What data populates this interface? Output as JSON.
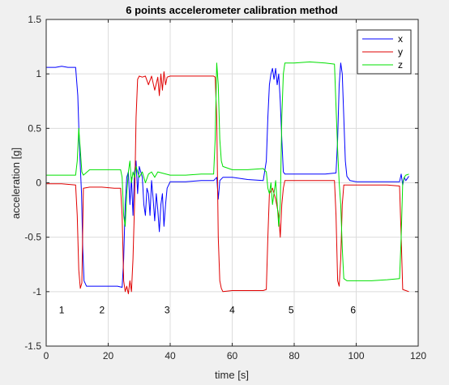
{
  "chart_data": {
    "type": "line",
    "title": "6 points accelerometer calibration method",
    "xlabel": "time [s]",
    "ylabel": "acceleration [g]",
    "xlim": [
      0,
      120
    ],
    "ylim": [
      -1.5,
      1.5
    ],
    "xticks": [
      0,
      20,
      40,
      60,
      80,
      100,
      120
    ],
    "yticks": [
      -1.5,
      -1,
      -0.5,
      0,
      0.5,
      1,
      1.5
    ],
    "xtick_labels": [
      "0",
      "20",
      "40",
      "60",
      "80",
      "100",
      "120"
    ],
    "ytick_labels": [
      "-1.5",
      "-1",
      "-0.5",
      "0",
      "0.5",
      "1",
      "1.5"
    ],
    "grid": true,
    "legend_position": "top-right",
    "annotations": [
      {
        "text": "1",
        "x": 5,
        "y": -1.17
      },
      {
        "text": "2",
        "x": 18,
        "y": -1.17
      },
      {
        "text": "3",
        "x": 39,
        "y": -1.17
      },
      {
        "text": "4",
        "x": 60,
        "y": -1.17
      },
      {
        "text": "5",
        "x": 79,
        "y": -1.17
      },
      {
        "text": "6",
        "x": 99,
        "y": -1.17
      }
    ],
    "series": [
      {
        "name": "x",
        "color": "#0000ff",
        "points": [
          [
            0,
            1.06
          ],
          [
            3,
            1.06
          ],
          [
            5,
            1.07
          ],
          [
            7,
            1.06
          ],
          [
            9.5,
            1.06
          ],
          [
            10.2,
            0.8
          ],
          [
            10.6,
            0.45
          ],
          [
            11,
            0.15
          ],
          [
            11.4,
            -0.1
          ],
          [
            11.8,
            -0.6
          ],
          [
            12.2,
            -0.9
          ],
          [
            13,
            -0.95
          ],
          [
            16,
            -0.95
          ],
          [
            20,
            -0.95
          ],
          [
            23,
            -0.95
          ],
          [
            24.5,
            -0.96
          ],
          [
            25,
            -0.7
          ],
          [
            25.5,
            -0.2
          ],
          [
            26,
            0.05
          ],
          [
            26.5,
            0.1
          ],
          [
            27,
            -0.2
          ],
          [
            27.5,
            0.05
          ],
          [
            28,
            -0.3
          ],
          [
            28.5,
            0.1
          ],
          [
            29,
            0.2
          ],
          [
            29.5,
            -0.1
          ],
          [
            30,
            0.15
          ],
          [
            30.5,
            0.1
          ],
          [
            31,
            0.05
          ],
          [
            31.5,
            -0.2
          ],
          [
            32,
            -0.3
          ],
          [
            32.5,
            -0.05
          ],
          [
            33,
            -0.1
          ],
          [
            33.5,
            -0.3
          ],
          [
            34,
            0.02
          ],
          [
            34.5,
            -0.15
          ],
          [
            35,
            -0.35
          ],
          [
            35.5,
            -0.1
          ],
          [
            36,
            -0.25
          ],
          [
            36.5,
            -0.45
          ],
          [
            37,
            -0.2
          ],
          [
            37.5,
            -0.1
          ],
          [
            38,
            -0.4
          ],
          [
            38.5,
            -0.2
          ],
          [
            39,
            -0.05
          ],
          [
            40,
            0.01
          ],
          [
            45,
            0.01
          ],
          [
            50,
            0.02
          ],
          [
            54,
            0.02
          ],
          [
            55,
            0.05
          ],
          [
            55.5,
            -0.15
          ],
          [
            56,
            0.02
          ],
          [
            57,
            0.05
          ],
          [
            60,
            0.05
          ],
          [
            65,
            0.03
          ],
          [
            70,
            0.02
          ],
          [
            71,
            0.2
          ],
          [
            71.5,
            0.6
          ],
          [
            72,
            0.9
          ],
          [
            72.5,
            1.0
          ],
          [
            73,
            1.05
          ],
          [
            73.5,
            0.95
          ],
          [
            74,
            1.05
          ],
          [
            74.5,
            0.9
          ],
          [
            75,
            1.0
          ],
          [
            75.5,
            0.75
          ],
          [
            76,
            0.4
          ],
          [
            76.5,
            0.1
          ],
          [
            77,
            0.08
          ],
          [
            80,
            0.08
          ],
          [
            85,
            0.08
          ],
          [
            90,
            0.08
          ],
          [
            93.5,
            0.09
          ],
          [
            94,
            0.4
          ],
          [
            94.5,
            0.9
          ],
          [
            95,
            1.1
          ],
          [
            95.5,
            1.0
          ],
          [
            96,
            0.6
          ],
          [
            96.5,
            0.2
          ],
          [
            97,
            0.06
          ],
          [
            98,
            0.02
          ],
          [
            100,
            0.01
          ],
          [
            105,
            0.01
          ],
          [
            110,
            0.01
          ],
          [
            114,
            0.01
          ],
          [
            114.5,
            0.08
          ],
          [
            115,
            -0.02
          ],
          [
            115.5,
            0.05
          ],
          [
            116,
            0.02
          ],
          [
            117,
            0.06
          ]
        ]
      },
      {
        "name": "y",
        "color": "#e00000",
        "points": [
          [
            0,
            -0.01
          ],
          [
            5,
            -0.01
          ],
          [
            9.5,
            -0.02
          ],
          [
            10,
            -0.3
          ],
          [
            10.5,
            -0.8
          ],
          [
            11,
            -0.97
          ],
          [
            11.5,
            -0.92
          ],
          [
            12,
            -0.05
          ],
          [
            14,
            -0.04
          ],
          [
            18,
            -0.04
          ],
          [
            22,
            -0.05
          ],
          [
            24,
            -0.05
          ],
          [
            24.5,
            -0.3
          ],
          [
            25,
            -0.9
          ],
          [
            25.5,
            -1.0
          ],
          [
            26,
            -0.95
          ],
          [
            26.5,
            -1.02
          ],
          [
            27,
            -0.9
          ],
          [
            27.5,
            -1.0
          ],
          [
            28,
            -0.7
          ],
          [
            28.5,
            -0.2
          ],
          [
            29,
            0.6
          ],
          [
            29.5,
            0.95
          ],
          [
            30,
            0.98
          ],
          [
            31,
            0.97
          ],
          [
            32,
            0.98
          ],
          [
            33,
            0.9
          ],
          [
            34,
            0.98
          ],
          [
            35,
            0.85
          ],
          [
            36,
            0.97
          ],
          [
            36.5,
            0.8
          ],
          [
            37,
            1.0
          ],
          [
            37.5,
            0.85
          ],
          [
            38,
            1.02
          ],
          [
            38.5,
            0.9
          ],
          [
            39,
            0.97
          ],
          [
            40,
            0.98
          ],
          [
            45,
            0.98
          ],
          [
            50,
            0.98
          ],
          [
            54,
            0.98
          ],
          [
            54.5,
            0.97
          ],
          [
            55,
            0.6
          ],
          [
            55.5,
            -0.5
          ],
          [
            56,
            -0.9
          ],
          [
            56.5,
            -0.97
          ],
          [
            57,
            -1.0
          ],
          [
            60,
            -0.99
          ],
          [
            65,
            -0.99
          ],
          [
            70,
            -0.99
          ],
          [
            71,
            -0.98
          ],
          [
            71.5,
            -0.5
          ],
          [
            72,
            -0.1
          ],
          [
            73,
            -0.05
          ],
          [
            74,
            -0.15
          ],
          [
            75,
            -0.3
          ],
          [
            75.5,
            -0.5
          ],
          [
            76,
            -0.2
          ],
          [
            76.5,
            -0.05
          ],
          [
            77,
            0.02
          ],
          [
            80,
            0.02
          ],
          [
            85,
            0.02
          ],
          [
            90,
            0.02
          ],
          [
            93,
            0.02
          ],
          [
            93.5,
            -0.3
          ],
          [
            94,
            -0.9
          ],
          [
            94.5,
            -0.95
          ],
          [
            95,
            -0.7
          ],
          [
            95.5,
            -0.2
          ],
          [
            96,
            -0.02
          ],
          [
            97,
            -0.02
          ],
          [
            100,
            -0.02
          ],
          [
            105,
            -0.02
          ],
          [
            110,
            -0.02
          ],
          [
            114,
            -0.03
          ],
          [
            114.5,
            -0.5
          ],
          [
            115,
            -0.98
          ],
          [
            116,
            -0.99
          ],
          [
            117,
            -1.0
          ]
        ]
      },
      {
        "name": "z",
        "color": "#00e000",
        "points": [
          [
            0,
            0.07
          ],
          [
            3,
            0.07
          ],
          [
            5,
            0.07
          ],
          [
            9.5,
            0.07
          ],
          [
            10,
            0.2
          ],
          [
            10.5,
            0.5
          ],
          [
            11,
            0.3
          ],
          [
            11.5,
            0.1
          ],
          [
            12,
            0.07
          ],
          [
            14,
            0.12
          ],
          [
            18,
            0.12
          ],
          [
            22,
            0.12
          ],
          [
            24,
            0.12
          ],
          [
            24.5,
            0.05
          ],
          [
            25,
            -0.3
          ],
          [
            25.5,
            -0.4
          ],
          [
            26,
            -0.1
          ],
          [
            26.5,
            0.1
          ],
          [
            27,
            0.2
          ],
          [
            27.5,
            0.0
          ],
          [
            28,
            0.1
          ],
          [
            28.5,
            0.05
          ],
          [
            29,
            0.15
          ],
          [
            30,
            0.05
          ],
          [
            31,
            0.1
          ],
          [
            32,
            0.0
          ],
          [
            33,
            0.08
          ],
          [
            34,
            0.1
          ],
          [
            35,
            0.05
          ],
          [
            36,
            0.1
          ],
          [
            40,
            0.07
          ],
          [
            45,
            0.07
          ],
          [
            50,
            0.08
          ],
          [
            54,
            0.08
          ],
          [
            54.5,
            0.4
          ],
          [
            55,
            1.1
          ],
          [
            55.5,
            0.9
          ],
          [
            56,
            0.4
          ],
          [
            56.5,
            0.2
          ],
          [
            57,
            0.15
          ],
          [
            60,
            0.12
          ],
          [
            65,
            0.12
          ],
          [
            70,
            0.13
          ],
          [
            71,
            0.1
          ],
          [
            71.5,
            -0.05
          ],
          [
            72,
            -0.1
          ],
          [
            72.5,
            0.0
          ],
          [
            73,
            -0.2
          ],
          [
            74,
            0.02
          ],
          [
            75,
            -0.4
          ],
          [
            75.5,
            -0.2
          ],
          [
            76,
            0.6
          ],
          [
            76.5,
            1.0
          ],
          [
            77,
            1.1
          ],
          [
            80,
            1.1
          ],
          [
            85,
            1.11
          ],
          [
            90,
            1.1
          ],
          [
            93,
            1.09
          ],
          [
            93.5,
            0.7
          ],
          [
            94,
            0.3
          ],
          [
            94.5,
            0.0
          ],
          [
            95,
            -0.2
          ],
          [
            95.5,
            -0.6
          ],
          [
            96,
            -0.88
          ],
          [
            97,
            -0.9
          ],
          [
            100,
            -0.9
          ],
          [
            105,
            -0.9
          ],
          [
            110,
            -0.89
          ],
          [
            114,
            -0.88
          ],
          [
            114.5,
            -0.5
          ],
          [
            115,
            0.0
          ],
          [
            115.5,
            0.05
          ],
          [
            116,
            0.07
          ],
          [
            117,
            0.08
          ]
        ]
      }
    ]
  }
}
